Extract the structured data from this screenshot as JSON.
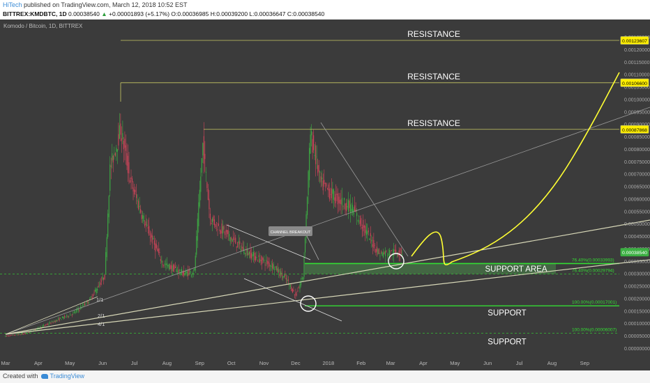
{
  "header": {
    "brand": "HiTech",
    "published": "published on TradingView.com, March 12, 2018 10:52 EST",
    "symbol": "BITTREX:KMDBTC, 1D",
    "price": "0.00038540",
    "arrow": "▲",
    "change": "+0.00001893 (+5.17%)",
    "open": "O:0.00036985",
    "high": "H:0.00039200",
    "low": "L:0.00036647",
    "close": "C:0.00038540"
  },
  "chart_data": {
    "type": "line",
    "title": "Komodo / Bitcoin, 1D, BITTREX",
    "x_ticks": [
      "Mar",
      "Apr",
      "May",
      "Jun",
      "Jul",
      "Aug",
      "Sep",
      "Oct",
      "Nov",
      "Dec",
      "2018",
      "Feb",
      "Mar",
      "Apr",
      "May",
      "Jun",
      "Jul",
      "Aug",
      "Sep"
    ],
    "y_ticks": [
      "0.00125000",
      "0.00120000",
      "0.00115000",
      "0.00110000",
      "0.00105000",
      "0.00100000",
      "0.00095000",
      "0.00090000",
      "0.00085000",
      "0.00080000",
      "0.00075000",
      "0.00070000",
      "0.00065000",
      "0.00060000",
      "0.00055000",
      "0.00050000",
      "0.00045000",
      "0.00040000",
      "0.00035000",
      "0.00030000",
      "0.00025000",
      "0.00020000",
      "0.00015000",
      "0.00010000",
      "0.00005000",
      "0.00000000"
    ],
    "ylim": [
      0,
      0.00128
    ],
    "grid": false,
    "price_tags": [
      {
        "label": "0.00123607",
        "value": 0.00123607
      },
      {
        "label": "0.00106600",
        "value": 0.001066
      },
      {
        "label": "0.00087868",
        "value": 0.00087868
      },
      {
        "label": "0.00038540",
        "value": 0.0003854
      }
    ],
    "resistance_levels": [
      {
        "label": "RESISTANCE",
        "value": 0.00123607
      },
      {
        "label": "RESISTANCE",
        "value": 0.001066
      },
      {
        "label": "RESISTANCE",
        "value": 0.00087868
      }
    ],
    "support_area": {
      "label": "SUPPORT AREA",
      "top": 0.00033993,
      "bottom": 0.00029794
    },
    "support_levels": [
      {
        "label": "SUPPORT",
        "value": 0.00017001
      },
      {
        "label": "SUPPORT",
        "value": 6.007e-05
      }
    ],
    "fib_labels": [
      {
        "text": "76.40%(0.00033993)",
        "value": 0.00033993
      },
      {
        "text": "76.40%(0.00029794)",
        "value": 0.00029794
      },
      {
        "text": "100.00%(0.00017001)",
        "value": 0.00017001
      },
      {
        "text": "100.00%(0.00006007)",
        "value": 6.007e-05
      }
    ],
    "gann_labels": [
      "1/1",
      "2/1",
      "4/1"
    ],
    "annotation": "CHANNEL BREAKOUT",
    "close_price": 0.0003854
  },
  "colors": {
    "background": "#3b3b3b",
    "candle_up": "#3cb043",
    "candle_down": "#d0455a",
    "resistance": "#c8c864",
    "support": "#33dd33",
    "projection": "#ffff33"
  },
  "footer": {
    "created": "Created with",
    "brand": "TradingView"
  }
}
